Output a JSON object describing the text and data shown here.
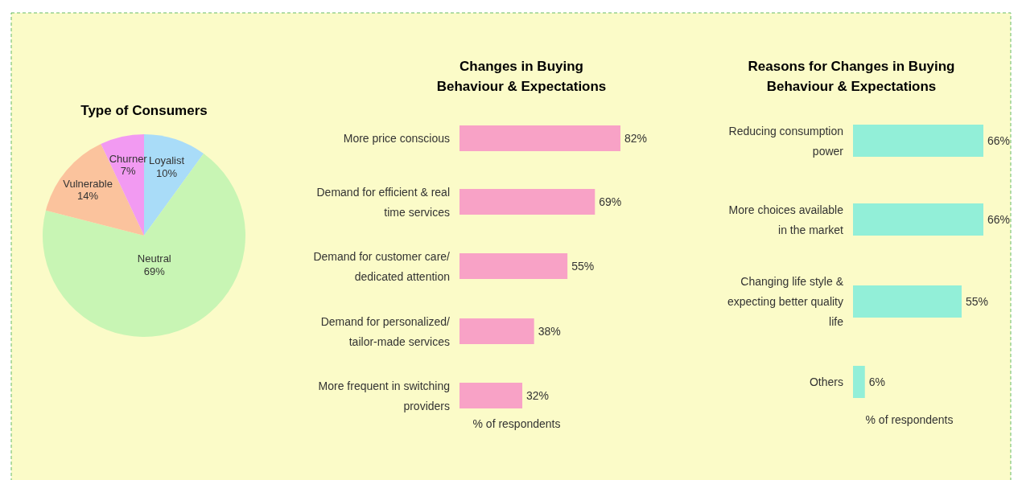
{
  "chart_data": [
    {
      "type": "pie",
      "title": "Type of Consumers",
      "categories": [
        "Loyalist",
        "Neutral",
        "Vulnerable",
        "Churner"
      ],
      "values": [
        10,
        69,
        14,
        7
      ],
      "colors": [
        "#a9dcf8",
        "#c8f5b4",
        "#fbc39d",
        "#f29af2"
      ],
      "value_labels": [
        "10%",
        "69%",
        "14%",
        "7%"
      ]
    },
    {
      "type": "bar",
      "orientation": "horizontal",
      "title": "Changes in Buying Behaviour & Expectations",
      "xlabel": "% of respondents",
      "categories": [
        "More price conscious",
        "Demand for efficient & real time services",
        "Demand for customer care/ dedicated attention",
        "Demand for personalized/ tailor-made services",
        "More frequent in switching providers"
      ],
      "series": [
        {
          "color": "#f8a2c6",
          "values": [
            82,
            69,
            55,
            38,
            32
          ],
          "value_labels": [
            "82%",
            "69%",
            "55%",
            "38%",
            "32%"
          ]
        }
      ]
    },
    {
      "type": "bar",
      "orientation": "horizontal",
      "title": "Reasons for Changes in Buying Behaviour & Expectations",
      "xlabel": "% of respondents",
      "categories": [
        "Reducing consumption power",
        "More choices available in the market",
        "Changing life style & expecting better quality life",
        "Others"
      ],
      "series": [
        {
          "color": "#92efd8",
          "values": [
            66,
            66,
            55,
            6
          ],
          "value_labels": [
            "66%",
            "66%",
            "55%",
            "6%"
          ]
        }
      ]
    }
  ]
}
